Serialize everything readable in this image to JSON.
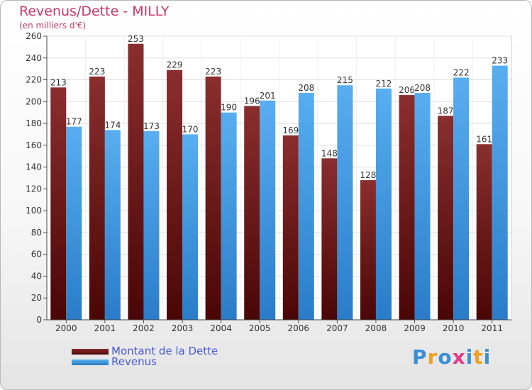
{
  "header": {
    "title": "Revenus/Dette - MILLY",
    "subtitle": "(en milliers d'€)"
  },
  "logo": {
    "letters": [
      "P",
      "r",
      "o",
      "x",
      "i",
      "t",
      "i"
    ],
    "colors": [
      "#3a8fd6",
      "#f0a020",
      "#3a8fd6",
      "#e23b8a",
      "#3a8fd6",
      "#f0a020",
      "#3a8fd6"
    ]
  },
  "legend": [
    {
      "label": "Montant de la Dette",
      "color": "#7a1e1e"
    },
    {
      "label": "Revenus",
      "color": "#3d97df"
    }
  ],
  "chart_data": {
    "type": "bar",
    "categories": [
      "2000",
      "2001",
      "2002",
      "2003",
      "2004",
      "2005",
      "2006",
      "2007",
      "2008",
      "2009",
      "2010",
      "2011"
    ],
    "series": [
      {
        "name": "Montant de la Dette",
        "color": "#7a1e1e",
        "values": [
          213,
          223,
          253,
          229,
          223,
          196,
          169,
          148,
          128,
          206,
          187,
          161
        ]
      },
      {
        "name": "Revenus",
        "color": "#3d97df",
        "values": [
          177,
          174,
          173,
          170,
          190,
          201,
          208,
          215,
          212,
          208,
          222,
          233
        ]
      }
    ],
    "ylim": [
      0,
      260
    ],
    "yticks": [
      0,
      20,
      40,
      60,
      80,
      100,
      120,
      140,
      160,
      180,
      200,
      220,
      240,
      260
    ],
    "grid": true,
    "legend_position": "bottom-left"
  }
}
